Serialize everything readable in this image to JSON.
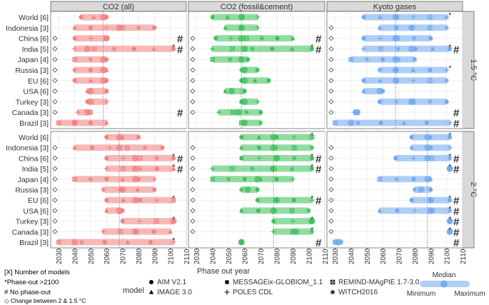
{
  "chart_data": {
    "type": "scatter",
    "title": "",
    "xlabel": "Phase out year",
    "xlim": [
      2025,
      2110
    ],
    "x_ticks": [
      2030,
      2040,
      2050,
      2060,
      2070,
      2080,
      2090,
      2100,
      2110
    ],
    "facet_columns": [
      "CO2 (all)",
      "CO2 (fossil&cement)",
      "Kyoto gases"
    ],
    "facet_rows": [
      "1.5 °C",
      "2 °C"
    ],
    "column_colors": [
      "#f08080",
      "#3cc05a",
      "#6fa8ee"
    ],
    "regions": [
      "World [6]",
      "Indonesia [3]",
      "China [6]",
      "India [5]",
      "Japan [4]",
      "Russia [3]",
      "EU [6]",
      "USA [6]",
      "Turkey [3]",
      "Canada [3]",
      "Brazil [3]"
    ],
    "reference_lines": [
      [
        2058,
        2058,
        2068
      ],
      [
        2068,
        2078,
        2088
      ]
    ],
    "panels": [
      {
        "row": 0,
        "col": 0,
        "bars": [
          [
            2044,
            2060
          ],
          [
            2040,
            2090
          ],
          [
            2040,
            2060
          ],
          [
            2040,
            2102
          ],
          [
            2040,
            2060
          ],
          [
            2040,
            2060
          ],
          [
            2040,
            2060
          ],
          [
            2048,
            2060
          ],
          [
            2048,
            2060
          ],
          [
            2042,
            2050
          ],
          [
            2030,
            2060
          ]
        ],
        "medians": [
          2058,
          2068,
          2060,
          2048,
          2058,
          2058,
          2058,
          2050,
          2050,
          2048,
          2040
        ],
        "phaseout_over_2100": [
          false,
          false,
          false,
          true,
          false,
          false,
          false,
          false,
          false,
          false,
          false
        ],
        "no_phaseout": [
          false,
          false,
          true,
          true,
          false,
          false,
          false,
          false,
          false,
          true,
          false
        ],
        "change": [
          false,
          false,
          true,
          true,
          true,
          true,
          true,
          true,
          true,
          true,
          false
        ]
      },
      {
        "row": 0,
        "col": 1,
        "bars": [
          [
            2040,
            2068
          ],
          [
            2048,
            2068
          ],
          [
            2042,
            2090
          ],
          [
            2040,
            2102
          ],
          [
            2040,
            2062
          ],
          [
            2058,
            2068
          ],
          [
            2058,
            2075
          ],
          [
            2048,
            2060
          ],
          [
            2058,
            2068
          ],
          [
            2044,
            2070
          ],
          [
            2058,
            2070
          ]
        ],
        "medians": [
          2058,
          2058,
          2058,
          2060,
          2058,
          2060,
          2060,
          2052,
          2060,
          2056,
          2060
        ],
        "phaseout_over_2100": [
          false,
          false,
          false,
          true,
          false,
          false,
          false,
          false,
          false,
          false,
          false
        ],
        "no_phaseout": [
          false,
          false,
          true,
          true,
          false,
          false,
          false,
          false,
          false,
          false,
          false
        ],
        "change": [
          false,
          false,
          true,
          true,
          true,
          true,
          true,
          true,
          true,
          true,
          false
        ]
      },
      {
        "row": 0,
        "col": 2,
        "bars": [
          [
            2048,
            2100
          ],
          [
            2058,
            2100
          ],
          [
            2048,
            2090
          ],
          [
            2048,
            2102
          ],
          [
            2040,
            2080
          ],
          [
            2058,
            2100
          ],
          [
            2048,
            2100
          ],
          [
            2048,
            2060
          ],
          [
            2058,
            2100
          ],
          [
            2042,
            2044
          ],
          [
            2030,
            2102
          ]
        ],
        "medians": [
          2068,
          2078,
          2068,
          2078,
          2068,
          2068,
          2068,
          2058,
          2078,
          2044,
          2040
        ],
        "phaseout_over_2100": [
          true,
          false,
          false,
          true,
          false,
          true,
          false,
          false,
          false,
          false,
          false
        ],
        "no_phaseout": [
          false,
          false,
          false,
          true,
          false,
          false,
          false,
          false,
          false,
          true,
          true
        ],
        "change": [
          false,
          true,
          true,
          true,
          true,
          true,
          true,
          true,
          true,
          true,
          false
        ]
      },
      {
        "row": 1,
        "col": 0,
        "bars": [
          [
            2060,
            2080
          ],
          [
            2040,
            2095
          ],
          [
            2060,
            2102
          ],
          [
            2060,
            2102
          ],
          [
            2040,
            2090
          ],
          [
            2058,
            2090
          ],
          [
            2060,
            2102
          ],
          [
            2060,
            2070
          ],
          [
            2070,
            2102
          ],
          [
            2058,
            2100
          ],
          [
            2030,
            2102
          ]
        ],
        "medians": [
          2068,
          2068,
          2078,
          2078,
          2078,
          2070,
          2078,
          2068,
          2102,
          2078,
          2040
        ],
        "phaseout_over_2100": [
          false,
          false,
          true,
          true,
          false,
          false,
          true,
          false,
          true,
          false,
          true
        ],
        "no_phaseout": [
          false,
          false,
          true,
          true,
          false,
          false,
          false,
          false,
          false,
          false,
          false
        ],
        "change": [
          false,
          true,
          true,
          true,
          true,
          true,
          true,
          true,
          true,
          true,
          false
        ]
      },
      {
        "row": 1,
        "col": 1,
        "bars": [
          [
            2058,
            2102
          ],
          [
            2058,
            2102
          ],
          [
            2058,
            2102
          ],
          [
            2040,
            2102
          ],
          [
            2040,
            2090
          ],
          [
            2058,
            2068
          ],
          [
            2068,
            2102
          ],
          [
            2058,
            2100
          ],
          [
            2078,
            2102
          ],
          [
            2078,
            2102
          ],
          [
            2058,
            2058
          ]
        ],
        "medians": [
          2078,
          2078,
          2080,
          2078,
          2068,
          2062,
          2080,
          2078,
          2102,
          2092,
          2058
        ],
        "phaseout_over_2100": [
          true,
          false,
          true,
          true,
          false,
          false,
          true,
          false,
          true,
          true,
          false
        ],
        "no_phaseout": [
          false,
          false,
          true,
          true,
          false,
          false,
          true,
          false,
          false,
          false,
          true
        ],
        "change": [
          false,
          true,
          true,
          true,
          true,
          true,
          true,
          true,
          true,
          true,
          false
        ]
      },
      {
        "row": 1,
        "col": 2,
        "bars": [
          [
            2078,
            2102
          ],
          [
            2078,
            2102
          ],
          [
            2068,
            2102
          ],
          [
            2102,
            2102
          ],
          [
            2058,
            2090
          ],
          [
            2080,
            2090
          ],
          [
            2078,
            2102
          ],
          [
            2058,
            2102
          ],
          [
            2102,
            2102
          ],
          [
            2102,
            2102
          ],
          [
            2030,
            2034
          ]
        ],
        "medians": [
          2088,
          2088,
          2088,
          2102,
          2088,
          2084,
          2090,
          2090,
          2102,
          2102,
          2032
        ],
        "phaseout_over_2100": [
          true,
          false,
          true,
          true,
          false,
          false,
          true,
          true,
          true,
          true,
          false
        ],
        "no_phaseout": [
          false,
          false,
          true,
          true,
          false,
          false,
          true,
          true,
          true,
          true,
          true
        ],
        "change": [
          false,
          true,
          true,
          true,
          true,
          true,
          true,
          true,
          true,
          true,
          false
        ]
      }
    ]
  },
  "legend": {
    "notes": [
      "[X] Number of models",
      "*Phase-out >2100",
      "# No phase-out",
      "◇ Change between 2 & 1.5 °C"
    ],
    "model_title": "model",
    "models": [
      {
        "label": "AIM V2.1",
        "shape": "circle"
      },
      {
        "label": "IMAGE 3.0",
        "shape": "triangle"
      },
      {
        "label": "MESSAGEix-GLOBIOM_1.1",
        "shape": "square"
      },
      {
        "label": "POLES CDL",
        "shape": "plus"
      },
      {
        "label": "REMIND-MAgPIE 1.7-3.0",
        "shape": "boxed-x"
      },
      {
        "label": "WITCH2016",
        "shape": "asterisk"
      }
    ],
    "range_title": "Median",
    "range_min": "Minimum",
    "range_max": "Maximum"
  }
}
